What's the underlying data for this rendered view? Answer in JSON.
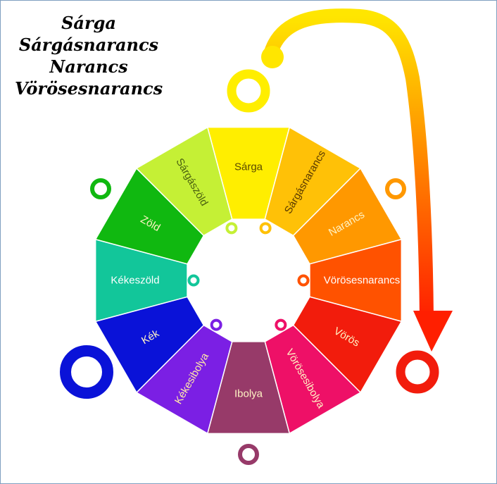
{
  "headline": [
    "Sárga",
    "Sárgásnarancs",
    "Narancs",
    "Vörösesnarancs"
  ],
  "segments": [
    {
      "label": "Sárga",
      "color": "#ffee00",
      "text_color": "#5a4a00"
    },
    {
      "label": "Sárgásnarancs",
      "color": "#ffc107",
      "text_color": "#5a3a00"
    },
    {
      "label": "Narancs",
      "color": "#ff9800",
      "text_color": "#fff3c4"
    },
    {
      "label": "Vörösesnarancs",
      "color": "#ff5200",
      "text_color": "#ffffff"
    },
    {
      "label": "Vörös",
      "color": "#f21c0c",
      "text_color": "#fff3c4"
    },
    {
      "label": "Vörösesibolya",
      "color": "#ee1067",
      "text_color": "#fff3c4"
    },
    {
      "label": "Ibolya",
      "color": "#973a69",
      "text_color": "#fff3c4"
    },
    {
      "label": "Kékesibolya",
      "color": "#7b1fe4",
      "text_color": "#ffe9a8"
    },
    {
      "label": "Kék",
      "color": "#0a12d8",
      "text_color": "#fff3c4"
    },
    {
      "label": "Kékeszöld",
      "color": "#12c69a",
      "text_color": "#ffffff"
    },
    {
      "label": "Zöld",
      "color": "#10b810",
      "text_color": "#fff3c4"
    },
    {
      "label": "Sárgászöld",
      "color": "#c5f035",
      "text_color": "#4a6010"
    }
  ],
  "arrow": {
    "from_color": "#ffe600",
    "to_color": "#ff1f00"
  },
  "outer_ring_colors": {
    "yellow": "#ffee00",
    "orange": "#ff9800",
    "red": "#f21c0c",
    "purple": "#973a69",
    "blue": "#0a12d8",
    "green": "#10b810"
  }
}
